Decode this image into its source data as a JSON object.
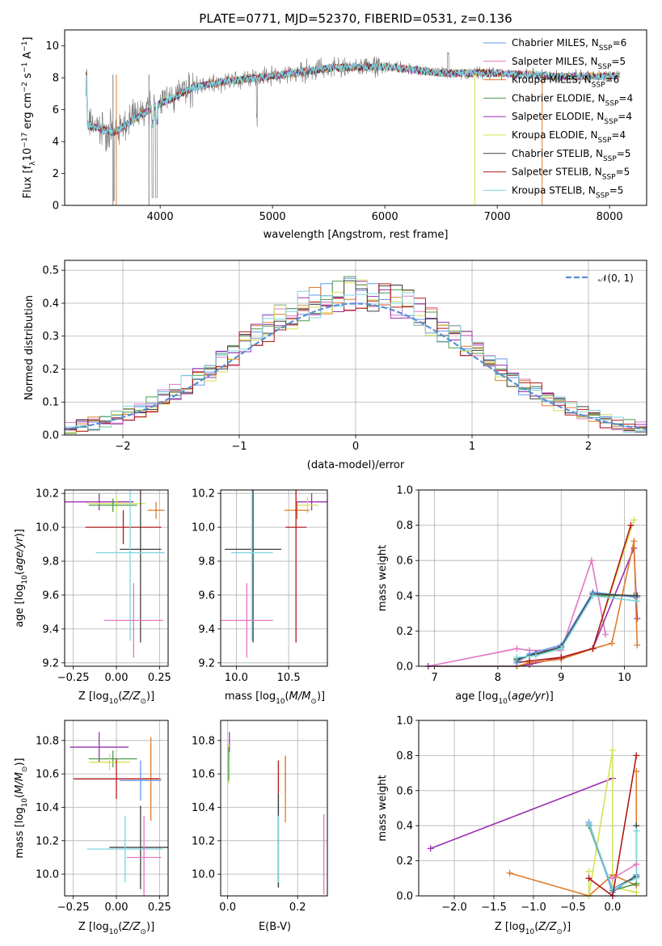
{
  "title": "PLATE=0771, MJD=52370, FIBERID=0531, z=0.136",
  "colors": {
    "Chabrier MILES": "#6495ed",
    "Salpeter MILES": "#e377c2",
    "Kroupa MILES": "#e07b2a",
    "Chabrier ELODIE": "#4a9a4a",
    "Salpeter ELODIE": "#9b30b0",
    "Kroupa ELODIE": "#d4e157",
    "Chabrier STELIB": "#404040",
    "Salpeter STELIB": "#b01818",
    "Kroupa STELIB": "#7fd6e0",
    "data": "#808080",
    "normal": "#5b8ed6"
  },
  "chart_data": [
    {
      "id": "spectrum",
      "type": "line",
      "xlabel": "wavelength [Angstrom, rest frame]",
      "ylabel": "Flux [f_λ10^-17 erg cm^-2 s^-1 A^-1]",
      "xlim": [
        3150,
        8330
      ],
      "ylim": [
        0,
        11
      ],
      "xticks": [
        4000,
        5000,
        6000,
        7000,
        8000
      ],
      "yticks": [
        0,
        2,
        4,
        6,
        8,
        10
      ],
      "legend_position": "upper-right",
      "legend": [
        "Chabrier MILES, N_SSP=6",
        "Salpeter MILES, N_SSP=5",
        "Kroupa MILES, N_SSP=6",
        "Chabrier ELODIE, N_SSP=4",
        "Salpeter ELODIE, N_SSP=4",
        "Kroupa ELODIE, N_SSP=4",
        "Chabrier STELIB, N_SSP=5",
        "Salpeter STELIB, N_SSP=5",
        "Kroupa STELIB, N_SSP=5"
      ],
      "continuum_knots": [
        [
          3350,
          5.0
        ],
        [
          3600,
          4.6
        ],
        [
          3750,
          5.3
        ],
        [
          3950,
          6.2
        ],
        [
          4100,
          6.7
        ],
        [
          4300,
          7.4
        ],
        [
          4600,
          7.8
        ],
        [
          5000,
          8.1
        ],
        [
          5500,
          8.6
        ],
        [
          6000,
          8.7
        ],
        [
          6500,
          8.3
        ],
        [
          7000,
          8.3
        ],
        [
          7500,
          8.1
        ],
        [
          8000,
          8.1
        ],
        [
          8100,
          8.2
        ]
      ]
    },
    {
      "id": "residuals",
      "type": "histogram",
      "xlabel": "(data-model)/error",
      "ylabel": "Normed distribution",
      "xlim": [
        -2.5,
        2.5
      ],
      "ylim": [
        0,
        0.53
      ],
      "xticks": [
        -2,
        -1,
        0,
        1,
        2
      ],
      "yticks": [
        0.0,
        0.1,
        0.2,
        0.3,
        0.4,
        0.5
      ],
      "grid": true,
      "legend": [
        "𝒩(0, 1)"
      ],
      "legend_position": "upper-right",
      "bin_width": 0.1
    },
    {
      "id": "age-Z",
      "type": "errorbar",
      "xlabel": "Z [log10(Z/Z⊙)]",
      "ylabel": "age [log10(age/yr)]",
      "xlim": [
        -0.3,
        0.3
      ],
      "ylim": [
        9.18,
        10.22
      ],
      "xticks": [
        -0.25,
        0.0,
        0.25
      ],
      "yticks": [
        9.2,
        9.4,
        9.6,
        9.8,
        10.0,
        10.2
      ],
      "points": [
        {
          "c": "Salpeter ELODIE",
          "x": -0.1,
          "y": 10.15,
          "xe": 0.2,
          "ye": 0.05
        },
        {
          "c": "Kroupa ELODIE",
          "x": 0.0,
          "y": 10.14,
          "xe": 0.17,
          "ye": 0.05
        },
        {
          "c": "Chabrier ELODIE",
          "x": -0.02,
          "y": 10.13,
          "xe": 0.14,
          "ye": 0.04
        },
        {
          "c": "Kroupa MILES",
          "x": 0.23,
          "y": 10.1,
          "xe": 0.05,
          "ye": 0.05
        },
        {
          "c": "Salpeter STELIB",
          "x": 0.04,
          "y": 10.0,
          "xe": 0.22,
          "ye": 0.1
        },
        {
          "c": "Chabrier STELIB",
          "x": 0.14,
          "y": 9.87,
          "xe": 0.12,
          "ye": 0.55
        },
        {
          "c": "Kroupa STELIB",
          "x": 0.08,
          "y": 9.85,
          "xe": 0.2,
          "ye": 0.52
        },
        {
          "c": "Salpeter MILES",
          "x": 0.1,
          "y": 9.45,
          "xe": 0.17,
          "ye": 0.22
        }
      ]
    },
    {
      "id": "age-mass",
      "type": "errorbar",
      "xlabel": "mass [log10(M/M⊙)]",
      "ylabel": "",
      "xlim": [
        9.85,
        10.87
      ],
      "ylim": [
        9.18,
        10.22
      ],
      "xticks": [
        10.0,
        10.5
      ],
      "yticks": [
        9.2,
        9.4,
        9.6,
        9.8,
        10.0,
        10.2
      ],
      "points": [
        {
          "c": "Salpeter ELODIE",
          "x": 10.72,
          "y": 10.15,
          "xe": 0.15,
          "ye": 0.05
        },
        {
          "c": "Kroupa ELODIE",
          "x": 10.68,
          "y": 10.13,
          "xe": 0.1,
          "ye": 0.05
        },
        {
          "c": "Kroupa MILES",
          "x": 10.58,
          "y": 10.1,
          "xe": 0.12,
          "ye": 0.05
        },
        {
          "c": "Salpeter STELIB",
          "x": 10.57,
          "y": 10.0,
          "xe": 0.1,
          "ye": 0.68
        },
        {
          "c": "Chabrier STELIB",
          "x": 10.16,
          "y": 9.87,
          "xe": 0.27,
          "ye": 0.55
        },
        {
          "c": "Kroupa STELIB",
          "x": 10.15,
          "y": 9.85,
          "xe": 0.2,
          "ye": 0.52
        },
        {
          "c": "Salpeter MILES",
          "x": 10.1,
          "y": 9.45,
          "xe": 0.25,
          "ye": 0.22
        }
      ]
    },
    {
      "id": "weight-age",
      "type": "line",
      "xlabel": "age [log10(age/yr)]",
      "ylabel": "mass weight",
      "xlim": [
        6.75,
        10.35
      ],
      "ylim": [
        0,
        1.0
      ],
      "xticks": [
        7,
        8,
        9,
        10
      ],
      "yticks": [
        0.0,
        0.2,
        0.4,
        0.6,
        0.8,
        1.0
      ],
      "grid": true,
      "series": [
        {
          "c": "Salpeter MILES",
          "x": [
            6.9,
            8.3,
            8.5,
            9.0,
            9.48,
            9.7
          ],
          "y": [
            0.0,
            0.1,
            0.09,
            0.09,
            0.6,
            0.18
          ]
        },
        {
          "c": "Kroupa ELODIE",
          "x": [
            6.9,
            8.3,
            9.0,
            9.5,
            10.15
          ],
          "y": [
            0.0,
            0.0,
            0.05,
            0.1,
            0.83
          ]
        },
        {
          "c": "Salpeter ELODIE",
          "x": [
            6.9,
            8.3,
            8.5,
            9.0,
            9.5,
            10.15,
            10.2
          ],
          "y": [
            0.0,
            0.0,
            0.01,
            0.05,
            0.1,
            0.67,
            0.27
          ]
        },
        {
          "c": "Kroupa MILES",
          "x": [
            8.3,
            8.5,
            9.0,
            9.5,
            9.8,
            10.15,
            10.2
          ],
          "y": [
            0.0,
            0.02,
            0.04,
            0.1,
            0.13,
            0.71,
            0.12
          ]
        },
        {
          "c": "Salpeter STELIB",
          "x": [
            8.3,
            8.5,
            9.0,
            9.5,
            10.1
          ],
          "y": [
            0.02,
            0.03,
            0.05,
            0.1,
            0.8
          ]
        },
        {
          "c": "Chabrier ELODIE",
          "x": [
            8.3,
            8.5,
            9.0,
            9.5,
            10.15
          ],
          "y": [
            0.03,
            0.06,
            0.1,
            0.4,
            0.4
          ]
        },
        {
          "c": "Chabrier MILES",
          "x": [
            8.3,
            8.5,
            9.0,
            9.5,
            10.2
          ],
          "y": [
            0.02,
            0.07,
            0.12,
            0.42,
            0.39
          ]
        },
        {
          "c": "Chabrier STELIB",
          "x": [
            8.3,
            8.6,
            9.0,
            9.5,
            10.2
          ],
          "y": [
            0.04,
            0.07,
            0.11,
            0.41,
            0.4
          ]
        },
        {
          "c": "Kroupa STELIB",
          "x": [
            8.3,
            8.6,
            9.0,
            9.5,
            10.2
          ],
          "y": [
            0.05,
            0.06,
            0.1,
            0.4,
            0.37
          ]
        }
      ]
    },
    {
      "id": "mass-Z",
      "type": "errorbar",
      "xlabel": "Z [log10(Z/Z⊙)]",
      "ylabel": "mass [log10(M/M⊙)]",
      "xlim": [
        -0.3,
        0.3
      ],
      "ylim": [
        9.87,
        10.92
      ],
      "xticks": [
        -0.25,
        0.0,
        0.25
      ],
      "yticks": [
        10.0,
        10.2,
        10.4,
        10.6,
        10.8
      ],
      "points": [
        {
          "c": "Salpeter ELODIE",
          "x": -0.1,
          "y": 10.76,
          "xe": 0.17,
          "ye": 0.09
        },
        {
          "c": "Chabrier ELODIE",
          "x": -0.02,
          "y": 10.69,
          "xe": 0.14,
          "ye": 0.05
        },
        {
          "c": "Kroupa ELODIE",
          "x": -0.04,
          "y": 10.67,
          "xe": 0.12,
          "ye": 0.05
        },
        {
          "c": "Kroupa MILES",
          "x": 0.2,
          "y": 10.57,
          "xe": 0.06,
          "ye": 0.25
        },
        {
          "c": "Salpeter STELIB",
          "x": 0.0,
          "y": 10.57,
          "xe": 0.25,
          "ye": 0.12
        },
        {
          "c": "Chabrier MILES",
          "x": 0.14,
          "y": 10.56,
          "xe": 0.12,
          "ye": 0.12
        },
        {
          "c": "Chabrier STELIB",
          "x": 0.14,
          "y": 10.16,
          "xe": 0.18,
          "ye": 0.25
        },
        {
          "c": "Kroupa STELIB",
          "x": 0.05,
          "y": 10.15,
          "xe": 0.22,
          "ye": 0.2
        },
        {
          "c": "Salpeter MILES",
          "x": 0.16,
          "y": 10.1,
          "xe": 0.1,
          "ye": 0.25
        }
      ]
    },
    {
      "id": "mass-EBV",
      "type": "errorbar",
      "xlabel": "E(B-V)",
      "ylabel": "",
      "xlim": [
        -0.02,
        0.285
      ],
      "ylim": [
        9.87,
        10.92
      ],
      "xticks": [
        0.0,
        0.2
      ],
      "yticks": [
        10.0,
        10.2,
        10.4,
        10.6,
        10.8
      ],
      "points": [
        {
          "c": "Salpeter ELODIE",
          "x": 0.005,
          "y": 10.79,
          "xe": 0,
          "ye": 0.06
        },
        {
          "c": "Kroupa ELODIE",
          "x": 0.003,
          "y": 10.66,
          "xe": 0,
          "ye": 0.12
        },
        {
          "c": "Chabrier ELODIE",
          "x": 0.003,
          "y": 10.66,
          "xe": 0,
          "ye": 0.1
        },
        {
          "c": "Chabrier MILES",
          "x": 0.165,
          "y": 10.6,
          "xe": 0,
          "ye": 0.1
        },
        {
          "c": "Kroupa MILES",
          "x": 0.165,
          "y": 10.51,
          "xe": 0,
          "ye": 0.2
        },
        {
          "c": "Salpeter STELIB",
          "x": 0.145,
          "y": 10.3,
          "xe": 0,
          "ye": 0.38
        },
        {
          "c": "Chabrier STELIB",
          "x": 0.145,
          "y": 10.2,
          "xe": 0,
          "ye": 0.28
        },
        {
          "c": "Kroupa STELIB",
          "x": 0.145,
          "y": 10.15,
          "xe": 0,
          "ye": 0.2
        },
        {
          "c": "Salpeter MILES",
          "x": 0.275,
          "y": 10.12,
          "xe": 0,
          "ye": 0.24
        }
      ]
    },
    {
      "id": "weight-Z",
      "type": "line",
      "xlabel": "Z [log10(Z/Z⊙)]",
      "ylabel": "mass weight",
      "xlim": [
        -2.45,
        0.43
      ],
      "ylim": [
        0,
        1.0
      ],
      "xticks": [
        -2.0,
        -1.5,
        -1.0,
        -0.5,
        0.0
      ],
      "yticks": [
        0.0,
        0.2,
        0.4,
        0.6,
        0.8,
        1.0
      ],
      "grid": true,
      "series": [
        {
          "c": "Salpeter ELODIE",
          "x": [
            -2.3,
            0.0
          ],
          "y": [
            0.27,
            0.67
          ]
        },
        {
          "c": "Kroupa MILES",
          "x": [
            -1.3,
            -0.3,
            0.0,
            0.3,
            0.3
          ],
          "y": [
            0.13,
            0.0,
            0.12,
            0.06,
            0.71
          ]
        },
        {
          "c": "Kroupa ELODIE",
          "x": [
            -0.3,
            -0.3,
            0.0,
            0.0,
            0.3
          ],
          "y": [
            0.14,
            0.0,
            0.83,
            0.05,
            0.02
          ]
        },
        {
          "c": "Chabrier ELODIE",
          "x": [
            -0.3,
            0.0,
            0.3
          ],
          "y": [
            0.4,
            0.03,
            0.07
          ]
        },
        {
          "c": "Chabrier MILES",
          "x": [
            -0.3,
            0.0,
            0.3
          ],
          "y": [
            0.42,
            0.02,
            0.12
          ]
        },
        {
          "c": "Chabrier STELIB",
          "x": [
            -0.3,
            0.0,
            0.3,
            0.3
          ],
          "y": [
            0.41,
            0.04,
            0.11,
            0.4
          ]
        },
        {
          "c": "Kroupa STELIB",
          "x": [
            -0.3,
            0.0,
            0.3,
            0.3
          ],
          "y": [
            0.41,
            0.04,
            0.1,
            0.37
          ]
        },
        {
          "c": "Salpeter STELIB",
          "x": [
            -0.3,
            0.0,
            0.3
          ],
          "y": [
            0.1,
            0.0,
            0.8
          ]
        },
        {
          "c": "Salpeter MILES",
          "x": [
            0.0,
            0.3
          ],
          "y": [
            0.1,
            0.18
          ]
        }
      ]
    }
  ]
}
